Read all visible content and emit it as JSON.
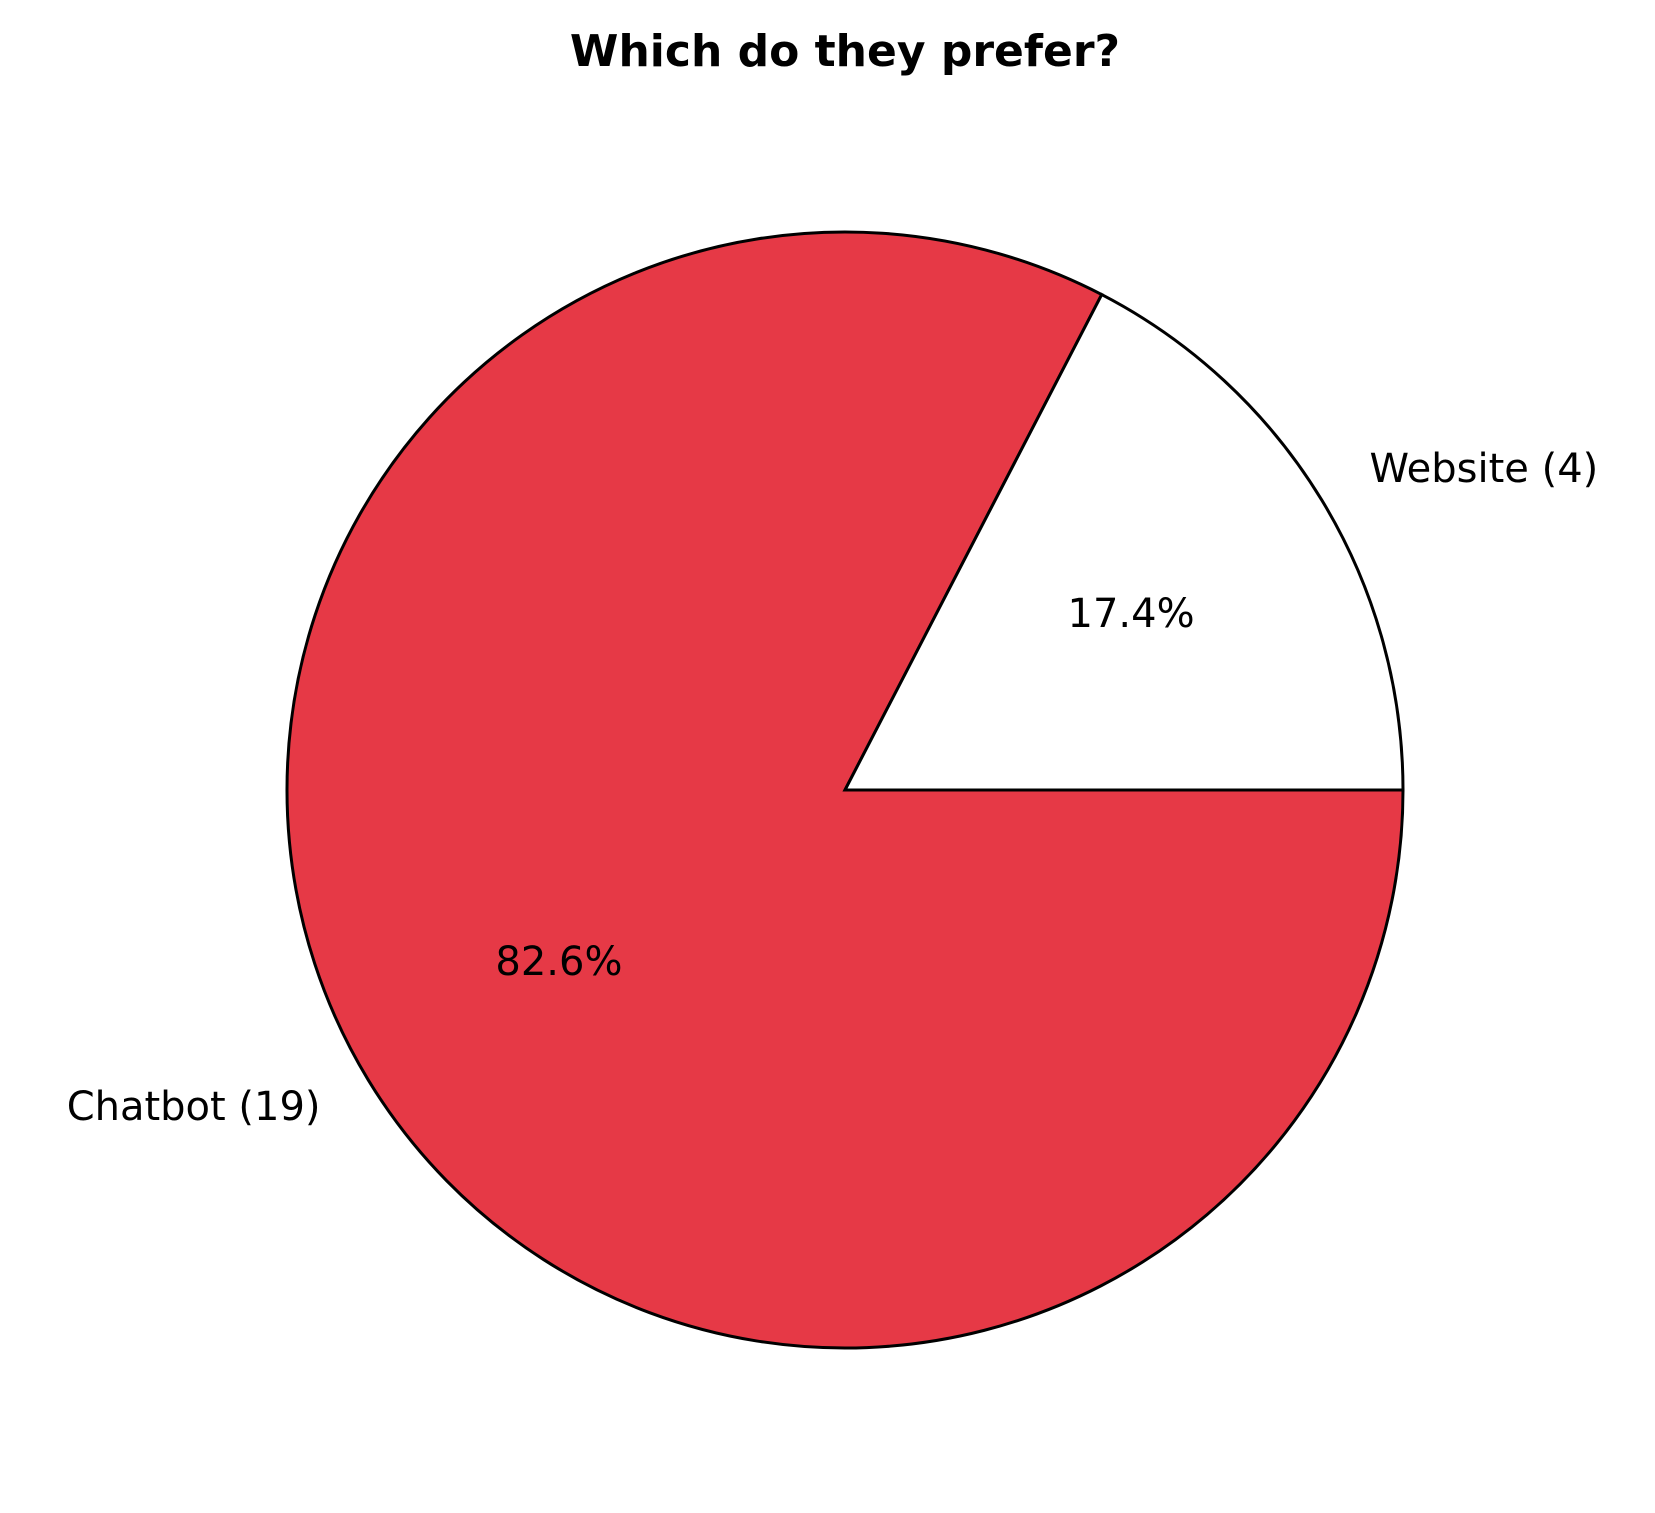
{
  "chart_data": {
    "type": "pie",
    "title": "Which do they prefer?",
    "series": [
      {
        "name": "Chatbot",
        "label": "Chatbot (19)",
        "count": 19,
        "pct_label": "82.6%",
        "color": "#e63946"
      },
      {
        "name": "Website",
        "label": "Website (4)",
        "count": 4,
        "pct_label": "17.4%",
        "color": "#ffffff"
      }
    ],
    "start_angle_deg": 0,
    "direction": "clockwise",
    "edge_color": "#000000",
    "legend": "none"
  }
}
